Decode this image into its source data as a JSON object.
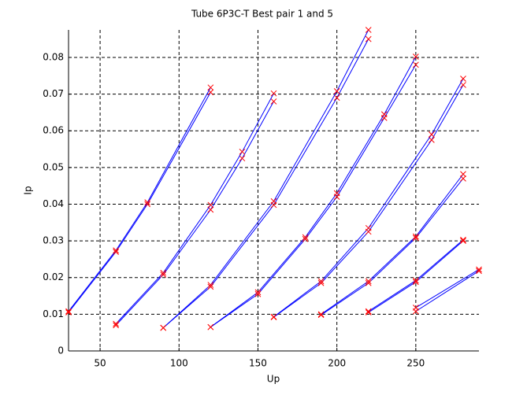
{
  "chart_data": {
    "type": "line",
    "title": "Tube  6P3C-T   Best pair  1 and 5",
    "x_label": "Up",
    "y_label": "Ip",
    "xlim": [
      30,
      290
    ],
    "ylim": [
      0,
      0.0875
    ],
    "xticks": [
      50,
      100,
      150,
      200,
      250
    ],
    "yticks": [
      0,
      0.01,
      0.02,
      0.03,
      0.04,
      0.05,
      0.06,
      0.07,
      0.08
    ],
    "grid": true,
    "line_color": "#0000ff",
    "marker_color": "#ff0000",
    "series": [
      {
        "x": [
          30,
          60,
          80,
          120
        ],
        "values": [
          0.0105,
          0.027,
          0.04,
          0.0705
        ]
      },
      {
        "x": [
          30,
          60,
          80,
          120
        ],
        "values": [
          0.0108,
          0.0274,
          0.0405,
          0.0718
        ]
      },
      {
        "x": [
          60,
          90,
          120,
          140,
          160
        ],
        "values": [
          0.007,
          0.0208,
          0.0385,
          0.0525,
          0.068
        ]
      },
      {
        "x": [
          60,
          90,
          120,
          140,
          160
        ],
        "values": [
          0.0074,
          0.0213,
          0.0398,
          0.0543,
          0.0702
        ]
      },
      {
        "x": [
          90,
          120,
          160,
          200,
          220
        ],
        "values": [
          0.0063,
          0.0175,
          0.0398,
          0.069,
          0.085
        ]
      },
      {
        "x": [
          90,
          120,
          160,
          200,
          220
        ],
        "values": [
          0.0063,
          0.018,
          0.0408,
          0.0708,
          0.0875
        ]
      },
      {
        "x": [
          120,
          150,
          180,
          200,
          230,
          250
        ],
        "values": [
          0.0065,
          0.0155,
          0.0305,
          0.042,
          0.0635,
          0.078
        ]
      },
      {
        "x": [
          120,
          150,
          180,
          200,
          230,
          250
        ],
        "values": [
          0.0065,
          0.016,
          0.031,
          0.043,
          0.0645,
          0.0802
        ]
      },
      {
        "x": [
          160,
          190,
          220,
          260,
          280
        ],
        "values": [
          0.0092,
          0.0185,
          0.0325,
          0.0575,
          0.0725
        ]
      },
      {
        "x": [
          160,
          190,
          220,
          260,
          280
        ],
        "values": [
          0.0093,
          0.019,
          0.0335,
          0.059,
          0.0742
        ]
      },
      {
        "x": [
          190,
          220,
          250,
          280
        ],
        "values": [
          0.0098,
          0.0185,
          0.0308,
          0.047
        ]
      },
      {
        "x": [
          190,
          220,
          250,
          280
        ],
        "values": [
          0.01,
          0.019,
          0.0312,
          0.0482
        ]
      },
      {
        "x": [
          220,
          250,
          280
        ],
        "values": [
          0.0105,
          0.0188,
          0.03
        ]
      },
      {
        "x": [
          220,
          250,
          280
        ],
        "values": [
          0.0108,
          0.0192,
          0.0303
        ]
      },
      {
        "x": [
          250,
          290
        ],
        "values": [
          0.0108,
          0.0218
        ]
      },
      {
        "x": [
          250,
          290
        ],
        "values": [
          0.0118,
          0.0222
        ]
      }
    ]
  }
}
